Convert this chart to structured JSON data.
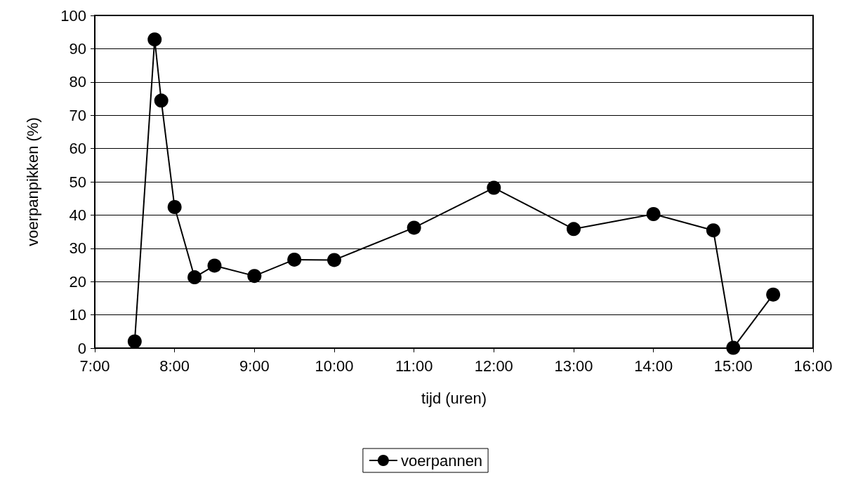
{
  "chart_data": {
    "type": "line",
    "xlabel": "tijd (uren)",
    "ylabel": "voerpanpikken (%)",
    "x": [
      7.5,
      7.75,
      7.833,
      8,
      8.25,
      8.5,
      9,
      9.5,
      10,
      11,
      12,
      13,
      14,
      14.75,
      15,
      15.5
    ],
    "series": [
      {
        "name": "voerpannen",
        "color": "#000000",
        "values": [
          2.0,
          92.8,
          74.4,
          42.4,
          21.3,
          24.8,
          21.7,
          26.6,
          26.5,
          36.2,
          48.2,
          35.8,
          40.3,
          35.4,
          0.1,
          16.1
        ]
      }
    ],
    "xlim": [
      7,
      16
    ],
    "xticks": [
      {
        "value": 7,
        "label": "7:00"
      },
      {
        "value": 8,
        "label": "8:00"
      },
      {
        "value": 9,
        "label": "9:00"
      },
      {
        "value": 10,
        "label": "10:00"
      },
      {
        "value": 11,
        "label": "11:00"
      },
      {
        "value": 12,
        "label": "12:00"
      },
      {
        "value": 13,
        "label": "13:00"
      },
      {
        "value": 14,
        "label": "14:00"
      },
      {
        "value": 15,
        "label": "15:00"
      },
      {
        "value": 16,
        "label": "16:00"
      }
    ],
    "ylim": [
      0,
      100
    ],
    "yticks": [
      0,
      10,
      20,
      30,
      40,
      50,
      60,
      70,
      80,
      90,
      100
    ],
    "grid": "y",
    "legend": "bottom",
    "marker": "circle",
    "line_style": "solid"
  }
}
